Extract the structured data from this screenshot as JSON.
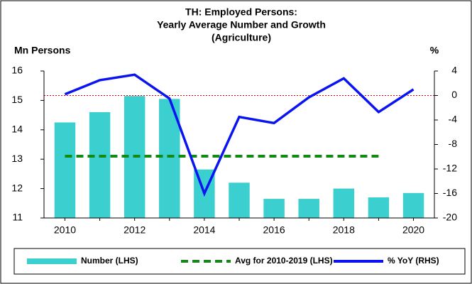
{
  "chart_data": {
    "type": "bar_line",
    "title": [
      "TH: Employed Persons:",
      "Yearly Average Number and Growth",
      "(Agriculture)"
    ],
    "y_label": "Mn Persons",
    "y2_label": "%",
    "x": [
      2010,
      2011,
      2012,
      2013,
      2014,
      2015,
      2016,
      2017,
      2018,
      2019,
      2020
    ],
    "xlim": [
      2009.4,
      2020.6
    ],
    "xticks": [
      2010,
      2012,
      2014,
      2016,
      2018,
      2020
    ],
    "ylim": [
      11,
      16
    ],
    "yticks": [
      11,
      12,
      13,
      14,
      15,
      16
    ],
    "y2lim": [
      -20,
      4
    ],
    "y2ticks": [
      -20,
      -16,
      -12,
      -8,
      -4,
      0,
      4
    ],
    "zero_line_color": "#e00000",
    "series": [
      {
        "name": "Number (LHS)",
        "kind": "bar",
        "color": "#3ccfcf",
        "values": [
          14.25,
          14.6,
          15.15,
          15.05,
          12.65,
          12.2,
          11.65,
          11.65,
          12.0,
          11.7,
          11.85
        ]
      },
      {
        "name": "Avg for 2010-2019 (LHS)",
        "kind": "dashed",
        "color": "#138a13",
        "values": [
          13.1,
          13.1,
          13.1,
          13.1,
          13.1,
          13.1,
          13.1,
          13.1,
          13.1,
          13.1,
          null
        ]
      },
      {
        "name": "% YoY (RHS)",
        "kind": "line",
        "axis": "y2",
        "color": "#0a14f0",
        "values": [
          0.2,
          2.5,
          3.4,
          -0.5,
          -16,
          -3.5,
          -4.5,
          -0.3,
          2.8,
          -2.7,
          1.0
        ]
      }
    ]
  }
}
